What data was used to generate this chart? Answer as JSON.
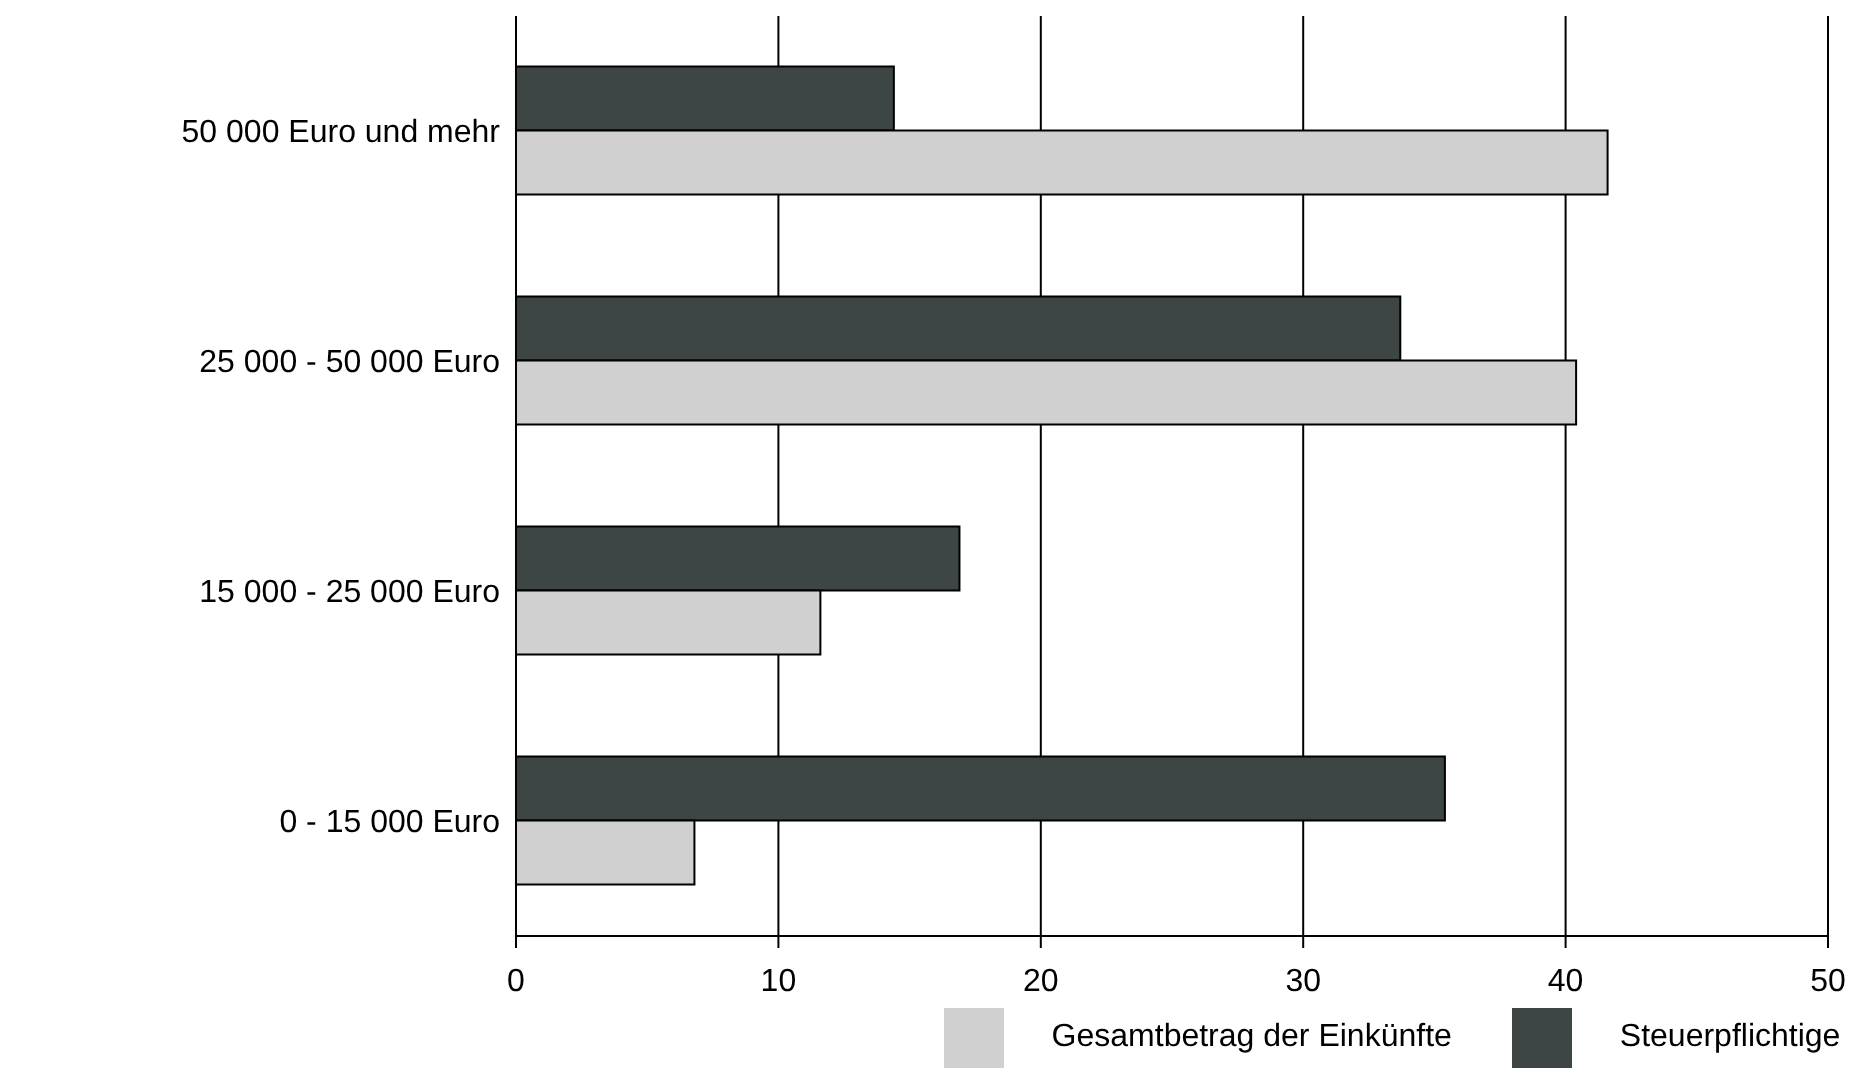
{
  "chart_data": {
    "type": "bar",
    "orientation": "horizontal",
    "categories": [
      "50 000 Euro und mehr",
      "25 000 - 50 000 Euro",
      "15 000 - 25 000 Euro",
      "0 - 15 000 Euro"
    ],
    "series": [
      {
        "name": "Steuerpflichtige",
        "color": "#3d4645",
        "values": [
          14.4,
          33.7,
          16.9,
          35.4
        ]
      },
      {
        "name": "Gesamtbetrag der Einkünfte",
        "color": "#d0d0d0",
        "values": [
          41.6,
          40.4,
          11.6,
          6.8
        ]
      }
    ],
    "xlim": [
      0,
      50
    ],
    "xticks": [
      0,
      10,
      20,
      30,
      40,
      50
    ],
    "grid": "x",
    "legend": "bottom"
  }
}
